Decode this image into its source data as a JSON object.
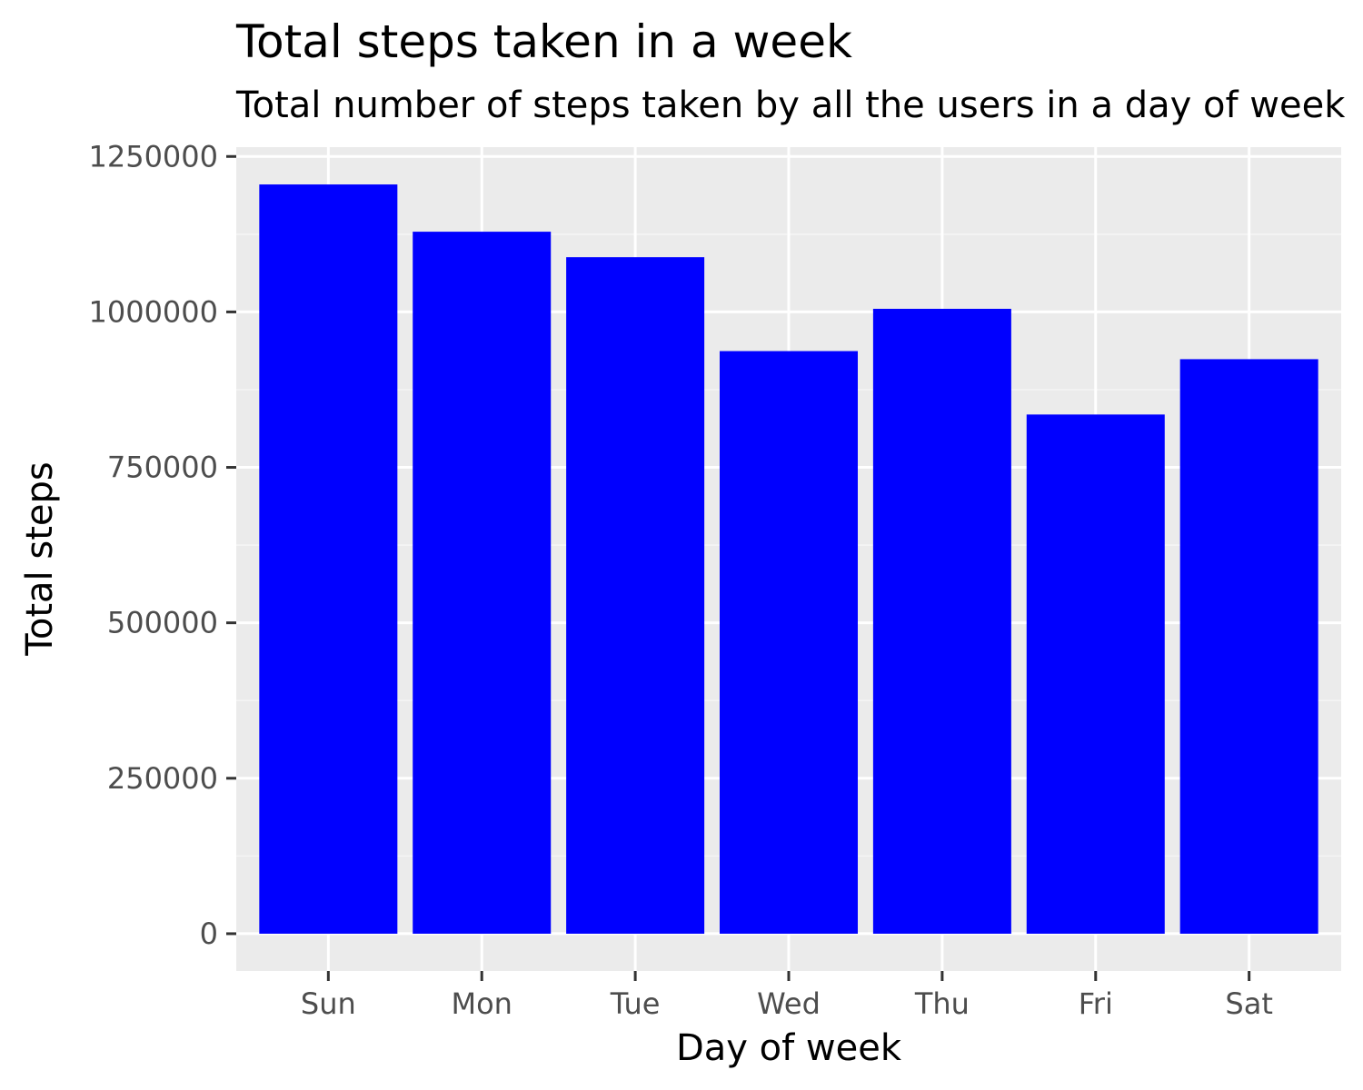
{
  "chart_data": {
    "type": "bar",
    "title": "Total steps taken in a week",
    "subtitle": "Total number of steps taken by all the users in a day of week",
    "xlabel": "Day of week",
    "ylabel": "Total steps",
    "categories": [
      "Sun",
      "Mon",
      "Tue",
      "Wed",
      "Thu",
      "Fri",
      "Sat"
    ],
    "values": [
      1205000,
      1129000,
      1088000,
      937000,
      1005000,
      835000,
      924000
    ],
    "ylim": [
      -60000,
      1265000
    ],
    "y_ticks": [
      0,
      250000,
      500000,
      750000,
      1000000,
      1250000
    ],
    "y_tick_labels": [
      "0",
      "250000",
      "500000",
      "750000",
      "1000000",
      "1250000"
    ],
    "grid": true,
    "legend": "none"
  },
  "colors": {
    "bar": "#0000ff",
    "panel": "#ebebeb",
    "grid_major": "#ffffff",
    "grid_minor": "#f5f5f5",
    "tick": "#333333"
  }
}
